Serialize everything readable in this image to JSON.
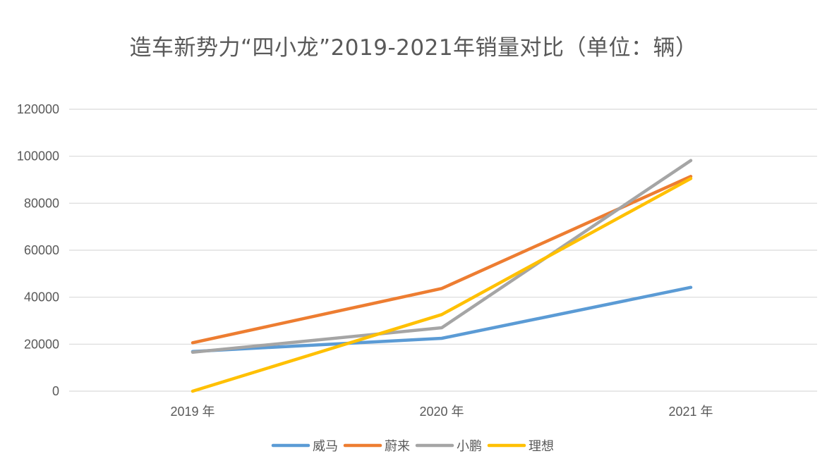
{
  "chart_data": {
    "type": "line",
    "title": "造车新势力“四小龙”2019-2021年销量对比（单位：辆）",
    "xlabel": "",
    "ylabel": "",
    "categories": [
      "2019 年",
      "2020 年",
      "2021 年"
    ],
    "ylim": [
      0,
      120000
    ],
    "y_ticks": [
      0,
      20000,
      40000,
      60000,
      80000,
      100000,
      120000
    ],
    "y_tick_labels": [
      "0",
      "20000",
      "40000",
      "60000",
      "80000",
      "100000",
      "120000"
    ],
    "grid": true,
    "legend_position": "bottom",
    "series": [
      {
        "name": "威马",
        "color": "#5B9BD5",
        "values": [
          16900,
          22500,
          44200
        ]
      },
      {
        "name": "蔚来",
        "color": "#ED7D31",
        "values": [
          20600,
          43700,
          91400
        ]
      },
      {
        "name": "小鹏",
        "color": "#A5A5A5",
        "values": [
          16600,
          27000,
          98200
        ]
      },
      {
        "name": "理想",
        "color": "#FFC000",
        "values": [
          0,
          32600,
          90500
        ]
      }
    ]
  }
}
